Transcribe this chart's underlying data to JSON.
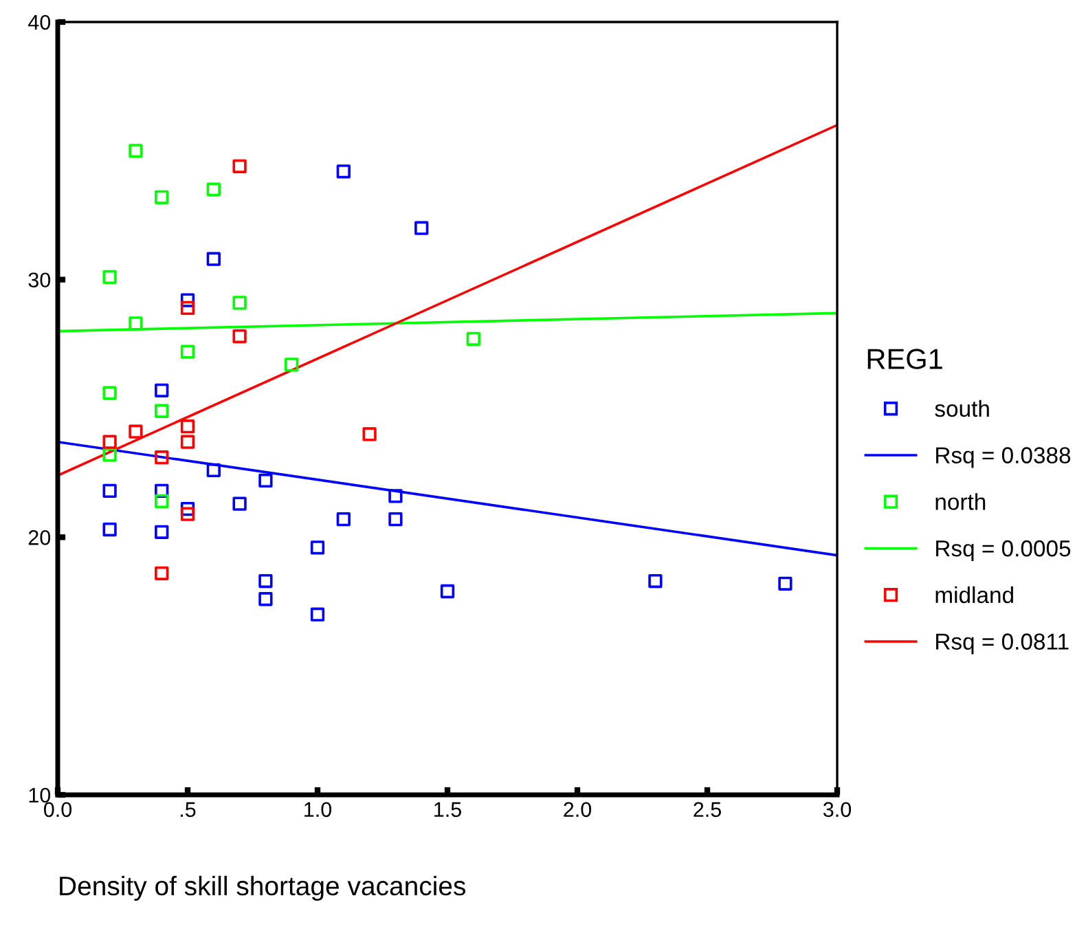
{
  "chart_data": {
    "type": "scatter",
    "xlabel": "Density of skill shortage vacancies",
    "legend_title": "REG1",
    "legend": "right",
    "grid": false,
    "xlim": [
      0,
      3
    ],
    "ylim": [
      10,
      40
    ],
    "xticks": [
      {
        "value": 0,
        "label": "0.0"
      },
      {
        "value": 0.5,
        "label": ".5"
      },
      {
        "value": 1,
        "label": "1.0"
      },
      {
        "value": 1.5,
        "label": "1.5"
      },
      {
        "value": 2,
        "label": "2.0"
      },
      {
        "value": 2.5,
        "label": "2.5"
      },
      {
        "value": 3,
        "label": "3.0"
      }
    ],
    "yticks": [
      10,
      20,
      30,
      40
    ],
    "series": [
      {
        "type": "line",
        "marker": "none",
        "name": "Rsq = 0.0388",
        "color": "#0000ff",
        "x": [
          0,
          3
        ],
        "values": [
          23.7,
          19.3
        ]
      },
      {
        "marker": "square",
        "name": "south",
        "color": "#0000ff",
        "x": [
          0.5,
          0.6,
          1.1,
          1.4,
          0.4,
          0.2,
          0.4,
          0.6,
          0.5,
          0.8,
          0.7,
          1.3,
          1.1,
          1.3,
          0.2,
          0.4,
          1.0,
          0.8,
          0.8,
          1.0,
          1.5,
          2.3,
          2.8
        ],
        "values": [
          29.2,
          30.8,
          34.2,
          32.0,
          25.7,
          21.8,
          21.8,
          22.6,
          21.1,
          22.2,
          21.3,
          21.6,
          20.7,
          20.7,
          20.3,
          20.2,
          19.6,
          18.3,
          17.6,
          17.0,
          17.9,
          18.3,
          18.2
        ]
      },
      {
        "type": "line",
        "marker": "none",
        "name": "Rsq = 0.0005",
        "color": "#00ff00",
        "x": [
          0,
          3
        ],
        "values": [
          28.0,
          28.7
        ]
      },
      {
        "marker": "square",
        "name": "north",
        "color": "#00ff00",
        "x": [
          0.3,
          0.4,
          0.6,
          0.2,
          0.3,
          0.7,
          0.5,
          0.9,
          1.6,
          0.2,
          0.4,
          0.2,
          0.4
        ],
        "values": [
          35.0,
          33.2,
          33.5,
          30.1,
          28.3,
          29.1,
          27.2,
          26.7,
          27.7,
          25.6,
          24.9,
          23.2,
          21.4
        ]
      },
      {
        "type": "line",
        "marker": "none",
        "name": "Rsq = 0.0811",
        "color": "#ff0000",
        "x": [
          0,
          3
        ],
        "values": [
          22.4,
          36.0
        ]
      },
      {
        "marker": "square",
        "name": "midland",
        "color": "#ff0000",
        "x": [
          0.7,
          0.5,
          0.7,
          0.3,
          0.5,
          0.2,
          0.5,
          0.4,
          1.2,
          0.5,
          0.4
        ],
        "values": [
          34.4,
          28.9,
          27.8,
          24.1,
          24.3,
          23.7,
          23.7,
          23.1,
          24.0,
          20.9,
          18.6
        ]
      }
    ]
  }
}
